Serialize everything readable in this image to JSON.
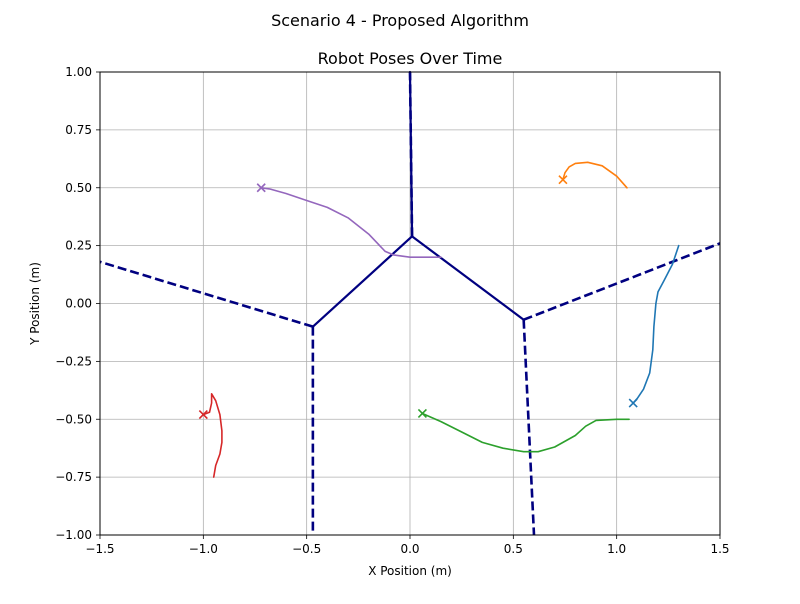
{
  "chart_data": {
    "type": "line",
    "suptitle": "Scenario 4 - Proposed Algorithm",
    "title": "Robot Poses Over Time",
    "xlabel": "X Position (m)",
    "ylabel": "Y Position (m)",
    "xlim": [
      -1.5,
      1.5
    ],
    "ylim": [
      -1.0,
      1.0
    ],
    "grid": true,
    "xticks": [
      -1.5,
      -1.0,
      -0.5,
      0.0,
      0.5,
      1.0,
      1.5
    ],
    "xtick_labels": [
      "−1.5",
      "−1.0",
      "−0.5",
      "0.0",
      "0.5",
      "1.0",
      "1.5"
    ],
    "yticks": [
      -1.0,
      -0.75,
      -0.5,
      -0.25,
      0.0,
      0.25,
      0.5,
      0.75,
      1.0
    ],
    "ytick_labels": [
      "−1.00",
      "−0.75",
      "−0.50",
      "−0.25",
      "0.00",
      "0.25",
      "0.50",
      "0.75",
      "1.00"
    ],
    "series": [
      {
        "color": "#1f77b4",
        "x": [
          1.3,
          1.27,
          1.23,
          1.2,
          1.19,
          1.185,
          1.18,
          1.175,
          1.16,
          1.13,
          1.1,
          1.08
        ],
        "y": [
          0.25,
          0.17,
          0.1,
          0.05,
          0.0,
          -0.05,
          -0.1,
          -0.2,
          -0.3,
          -0.37,
          -0.41,
          -0.43
        ],
        "final": [
          1.08,
          -0.43
        ]
      },
      {
        "color": "#ff7f0e",
        "x": [
          1.05,
          1.0,
          0.93,
          0.86,
          0.8,
          0.77,
          0.75,
          0.74
        ],
        "y": [
          0.5,
          0.55,
          0.595,
          0.61,
          0.605,
          0.59,
          0.565,
          0.535
        ],
        "final": [
          0.74,
          0.535
        ]
      },
      {
        "color": "#2ca02c",
        "x": [
          1.06,
          1.0,
          0.9,
          0.85,
          0.8,
          0.7,
          0.62,
          0.55,
          0.45,
          0.35,
          0.25,
          0.15,
          0.06
        ],
        "y": [
          -0.5,
          -0.5,
          -0.505,
          -0.53,
          -0.57,
          -0.62,
          -0.64,
          -0.64,
          -0.625,
          -0.6,
          -0.555,
          -0.51,
          -0.475
        ],
        "final": [
          0.06,
          -0.475
        ]
      },
      {
        "color": "#d62728",
        "x": [
          -0.95,
          -0.94,
          -0.92,
          -0.91,
          -0.91,
          -0.92,
          -0.94,
          -0.96,
          -0.96,
          -0.97,
          -1.0
        ],
        "y": [
          -0.75,
          -0.7,
          -0.65,
          -0.6,
          -0.55,
          -0.48,
          -0.42,
          -0.39,
          -0.43,
          -0.47,
          -0.48
        ],
        "final": [
          -1.0,
          -0.48
        ]
      },
      {
        "color": "#9467bd",
        "x": [
          0.15,
          0.08,
          0.0,
          -0.08,
          -0.12,
          -0.2,
          -0.3,
          -0.4,
          -0.5,
          -0.6,
          -0.68,
          -0.72
        ],
        "y": [
          0.2,
          0.2,
          0.2,
          0.21,
          0.225,
          0.3,
          0.37,
          0.415,
          0.445,
          0.475,
          0.495,
          0.5
        ],
        "final": [
          -0.72,
          0.5
        ]
      }
    ],
    "boundaries": {
      "color": "#000080",
      "solid": [
        [
          [
            0.01,
            0.29
          ],
          [
            -0.47,
            -0.1
          ]
        ],
        [
          [
            0.01,
            0.29
          ],
          [
            0.55,
            -0.07
          ]
        ],
        [
          [
            0.01,
            0.29
          ],
          [
            0.0,
            1.0
          ]
        ]
      ],
      "dashed": [
        [
          [
            -0.47,
            -0.1
          ],
          [
            -1.5,
            0.18
          ]
        ],
        [
          [
            -0.47,
            -0.1
          ],
          [
            -0.47,
            -1.0
          ]
        ],
        [
          [
            0.55,
            -0.07
          ],
          [
            1.5,
            0.26
          ]
        ],
        [
          [
            0.55,
            -0.07
          ],
          [
            0.6,
            -1.0
          ]
        ],
        [
          [
            0.01,
            0.29
          ],
          [
            0.0,
            1.0
          ]
        ]
      ]
    }
  }
}
